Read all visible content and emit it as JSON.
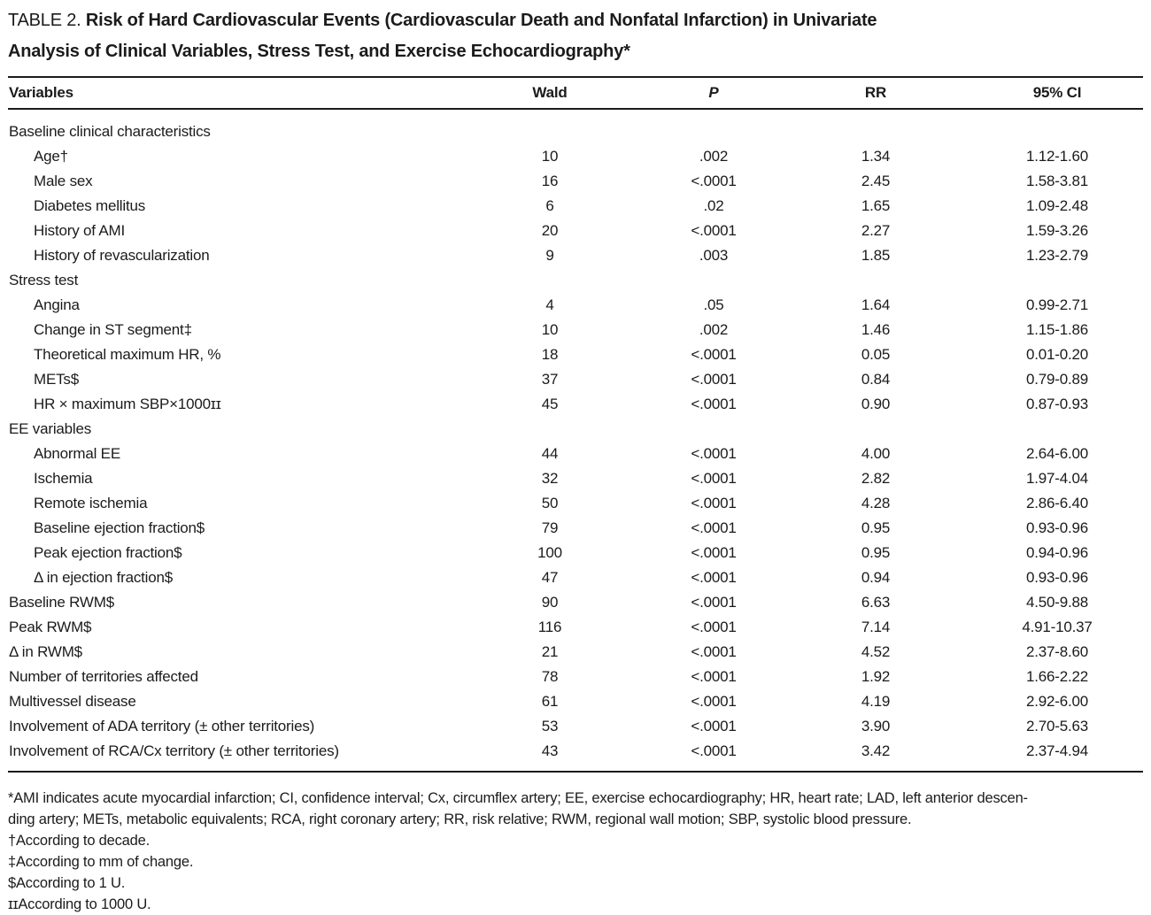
{
  "title": {
    "prefix": "TABLE 2.",
    "text": "Risk of Hard Cardiovascular Events (Cardiovascular Death and Nonfatal Infarction) in Univariate\nAnalysis of Clinical Variables, Stress Test, and Exercise Echocardiography*"
  },
  "table": {
    "columns": [
      "Variables",
      "Wald",
      "P",
      "RR",
      "95% CI"
    ],
    "rows": [
      {
        "label": "Baseline clinical characteristics",
        "indent": 0,
        "wald": "",
        "p": "",
        "rr": "",
        "ci": ""
      },
      {
        "label": "Age†",
        "indent": 1,
        "wald": "10",
        "p": ".002",
        "rr": "1.34",
        "ci": "1.12-1.60"
      },
      {
        "label": "Male sex",
        "indent": 1,
        "wald": "16",
        "p": "<.0001",
        "rr": "2.45",
        "ci": "1.58-3.81"
      },
      {
        "label": "Diabetes mellitus",
        "indent": 1,
        "wald": "6",
        "p": ".02",
        "rr": "1.65",
        "ci": "1.09-2.48"
      },
      {
        "label": "History of AMI",
        "indent": 1,
        "wald": "20",
        "p": "<.0001",
        "rr": "2.27",
        "ci": "1.59-3.26"
      },
      {
        "label": "History of revascularization",
        "indent": 1,
        "wald": "9",
        "p": ".003",
        "rr": "1.85",
        "ci": "1.23-2.79"
      },
      {
        "label": "Stress test",
        "indent": 0,
        "wald": "",
        "p": "",
        "rr": "",
        "ci": ""
      },
      {
        "label": "Angina",
        "indent": 1,
        "wald": "4",
        "p": ".05",
        "rr": "1.64",
        "ci": "0.99-2.71"
      },
      {
        "label": "Change in ST segment‡",
        "indent": 1,
        "wald": "10",
        "p": ".002",
        "rr": "1.46",
        "ci": "1.15-1.86"
      },
      {
        "label": "Theoretical maximum HR, %",
        "indent": 1,
        "wald": "18",
        "p": "<.0001",
        "rr": "0.05",
        "ci": "0.01-0.20"
      },
      {
        "label": "METs$",
        "indent": 1,
        "wald": "37",
        "p": "<.0001",
        "rr": "0.84",
        "ci": "0.79-0.89"
      },
      {
        "label": "HR × maximum SBP×1000ɪɪ",
        "indent": 1,
        "wald": "45",
        "p": "<.0001",
        "rr": "0.90",
        "ci": "0.87-0.93"
      },
      {
        "label": "EE variables",
        "indent": 0,
        "wald": "",
        "p": "",
        "rr": "",
        "ci": ""
      },
      {
        "label": "Abnormal EE",
        "indent": 1,
        "wald": "44",
        "p": "<.0001",
        "rr": "4.00",
        "ci": "2.64-6.00"
      },
      {
        "label": "Ischemia",
        "indent": 1,
        "wald": "32",
        "p": "<.0001",
        "rr": "2.82",
        "ci": "1.97-4.04"
      },
      {
        "label": "Remote ischemia",
        "indent": 1,
        "wald": "50",
        "p": "<.0001",
        "rr": "4.28",
        "ci": "2.86-6.40"
      },
      {
        "label": "Baseline ejection fraction$",
        "indent": 1,
        "wald": "79",
        "p": "<.0001",
        "rr": "0.95",
        "ci": "0.93-0.96"
      },
      {
        "label": "Peak ejection fraction$",
        "indent": 1,
        "wald": "100",
        "p": "<.0001",
        "rr": "0.95",
        "ci": "0.94-0.96"
      },
      {
        "label": "Δ in ejection fraction$",
        "indent": 1,
        "wald": "47",
        "p": "<.0001",
        "rr": "0.94",
        "ci": "0.93-0.96"
      },
      {
        "label": "Baseline RWM$",
        "indent": 0,
        "wald": "90",
        "p": "<.0001",
        "rr": "6.63",
        "ci": "4.50-9.88"
      },
      {
        "label": "Peak RWM$",
        "indent": 0,
        "wald": "116",
        "p": "<.0001",
        "rr": "7.14",
        "ci": "4.91-10.37"
      },
      {
        "label": "Δ in RWM$",
        "indent": 0,
        "wald": "21",
        "p": "<.0001",
        "rr": "4.52",
        "ci": "2.37-8.60"
      },
      {
        "label": "Number of territories affected",
        "indent": 0,
        "wald": "78",
        "p": "<.0001",
        "rr": "1.92",
        "ci": "1.66-2.22"
      },
      {
        "label": "Multivessel disease",
        "indent": 0,
        "wald": "61",
        "p": "<.0001",
        "rr": "4.19",
        "ci": "2.92-6.00"
      },
      {
        "label": "Involvement of ADA territory (± other territories)",
        "indent": 0,
        "wald": "53",
        "p": "<.0001",
        "rr": "3.90",
        "ci": "2.70-5.63"
      },
      {
        "label": "Involvement of RCA/Cx territory (± other territories)",
        "indent": 0,
        "wald": "43",
        "p": "<.0001",
        "rr": "3.42",
        "ci": "2.37-4.94"
      }
    ]
  },
  "footnotes": [
    "*AMI indicates acute myocardial infarction; CI, confidence interval; Cx, circumflex artery; EE, exercise echocardiography; HR, heart rate; LAD, left anterior descen-",
    "ding artery; METs, metabolic equivalents; RCA, right coronary artery; RR, risk relative; RWM, regional wall motion; SBP, systolic blood pressure.",
    "†According to decade.",
    "‡According to mm of change.",
    "$According to 1 U.",
    "ɪɪAccording to 1000 U."
  ]
}
